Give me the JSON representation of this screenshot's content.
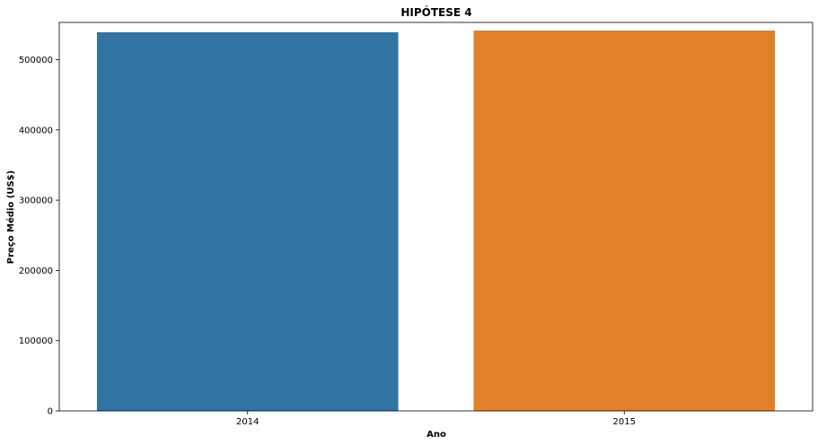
{
  "chart_data": {
    "type": "bar",
    "title": "HIPÓTESE 4",
    "xlabel": "Ano",
    "ylabel": "Preço Médio (US$)",
    "categories": [
      "2014",
      "2015"
    ],
    "values": [
      539000,
      541500
    ],
    "colors": [
      "#3274a1",
      "#e1812c"
    ],
    "ylim": [
      0,
      553000
    ],
    "yticks": [
      0,
      100000,
      200000,
      300000,
      400000,
      500000
    ],
    "ytick_labels": [
      "0",
      "100000",
      "200000",
      "300000",
      "400000",
      "500000"
    ],
    "grid": false,
    "legend": "none"
  }
}
